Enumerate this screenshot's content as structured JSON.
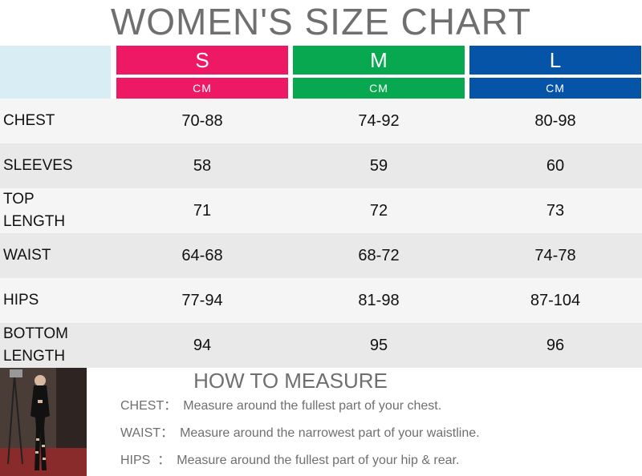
{
  "title": "WOMEN'S SIZE CHART",
  "colors": {
    "S": "#ee1965",
    "M": "#08a851",
    "L": "#0654a8",
    "corner": "#d9edf5",
    "row_light": "#f5f5f5",
    "row_dark": "#e9e9e9"
  },
  "sizes": [
    {
      "name": "S",
      "unit": "CM"
    },
    {
      "name": "M",
      "unit": "CM"
    },
    {
      "name": "L",
      "unit": "CM"
    }
  ],
  "rows": [
    {
      "label": "CHEST",
      "values": [
        "70-88",
        "74-92",
        "80-98"
      ]
    },
    {
      "label": "SLEEVES",
      "values": [
        "58",
        "59",
        "60"
      ]
    },
    {
      "label": "TOP\nLENGTH",
      "values": [
        "71",
        "72",
        "73"
      ]
    },
    {
      "label": "WAIST",
      "values": [
        "64-68",
        "68-72",
        "74-78"
      ]
    },
    {
      "label": "HIPS",
      "values": [
        "77-94",
        "81-98",
        "87-104"
      ]
    },
    {
      "label": "BOTTOM\nLENGTH",
      "values": [
        "94",
        "95",
        "96"
      ]
    }
  ],
  "how_to_measure": {
    "title": "HOW TO MEASURE",
    "items": [
      {
        "label": "CHEST：",
        "text": "Measure around the fullest part of your chest."
      },
      {
        "label": "WAIST：",
        "text": "Measure around the narrowest part of your waistline."
      },
      {
        "label": "HIPS  ：",
        "text": "Measure around the fullest part of your hip & rear."
      }
    ]
  },
  "photo": {
    "icon": "model-photo"
  }
}
